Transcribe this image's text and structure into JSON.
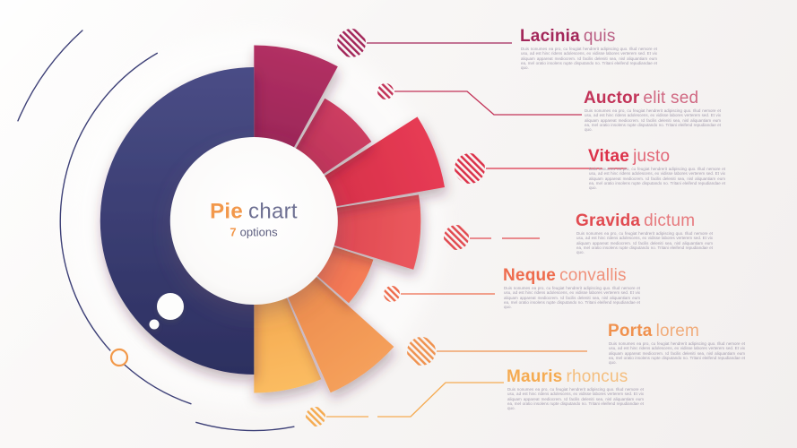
{
  "center": {
    "title_accent": "Pie",
    "title_rest": "chart",
    "subtitle_accent": "7",
    "subtitle_rest": "options"
  },
  "body_text": "Duis nonumes ea pro, cu feugiat hendrerit adipiscing quo. Illud nemore et usu, ad est hinc ridens adolescens, ex vidisse labores verterem sed. Et vix aliquam appareat mediocrem. Id facilis deleniti sea, nisl aliquantiam eum ea, mel oratio insolens rupte disputando no. Tritani eleifend repudiandae et quo.",
  "labels": [
    {
      "id": "lacinia",
      "word1": "Lacinia",
      "word2": "quis",
      "color": "#A3275A"
    },
    {
      "id": "auctor",
      "word1": "Auctor",
      "word2": "elit sed",
      "color": "#C23358"
    },
    {
      "id": "vitae",
      "word1": "Vitae",
      "word2": "justo",
      "color": "#DC3149"
    },
    {
      "id": "gravida",
      "word1": "Gravida",
      "word2": "dictum",
      "color": "#E14B51"
    },
    {
      "id": "neque",
      "word1": "Neque",
      "word2": "convallis",
      "color": "#EE6C4E"
    },
    {
      "id": "porta",
      "word1": "Porta",
      "word2": "lorem",
      "color": "#F0924F"
    },
    {
      "id": "mauris",
      "word1": "Mauris",
      "word2": "rhoncus",
      "color": "#F5AB52"
    }
  ],
  "chart_data": {
    "type": "pie",
    "title": "Pie chart",
    "subtitle": "7 options",
    "options_count": 7,
    "legend_position": "right",
    "segments": [
      {
        "id": "lacinia",
        "label": "Lacinia quis",
        "value_pct": 7.9,
        "start_angle": 0,
        "end_angle": 28.5,
        "outer_radius": 196,
        "color_light": "#B23063",
        "color_dark": "#8A1F4F"
      },
      {
        "id": "auctor",
        "label": "Auctor elit sed",
        "value_pct": 7.2,
        "start_angle": 30,
        "end_angle": 56,
        "outer_radius": 158,
        "color_light": "#CD3D62",
        "color_dark": "#AC294D"
      },
      {
        "id": "vitae",
        "label": "Vitae justo",
        "value_pct": 6.3,
        "start_angle": 57.5,
        "end_angle": 80,
        "outer_radius": 216,
        "color_light": "#E73B54",
        "color_dark": "#CB2A43"
      },
      {
        "id": "gravida",
        "label": "Gravida dictum",
        "value_pct": 7.2,
        "start_angle": 81,
        "end_angle": 107,
        "outer_radius": 186,
        "color_light": "#EB585D",
        "color_dark": "#D33A47"
      },
      {
        "id": "neque",
        "label": "Neque convallis",
        "value_pct": 6.4,
        "start_angle": 108,
        "end_angle": 131,
        "outer_radius": 140,
        "color_light": "#F57D56",
        "color_dark": "#E15A46"
      },
      {
        "id": "porta",
        "label": "Porta lorem",
        "value_pct": 6.7,
        "start_angle": 132,
        "end_angle": 156,
        "outer_radius": 210,
        "color_light": "#F5A05B",
        "color_dark": "#E77D43"
      },
      {
        "id": "mauris",
        "label": "Mauris rhoncus",
        "value_pct": 6.4,
        "start_angle": 157,
        "end_angle": 180,
        "outer_radius": 192,
        "color_light": "#FBBC61",
        "color_dark": "#EE9944"
      },
      {
        "id": "base",
        "label": "",
        "value_pct": 50,
        "start_angle": 180,
        "end_angle": 360,
        "outer_radius": 171.5,
        "color_light": "#4A4D86",
        "color_dark": "#2C2F60"
      }
    ]
  },
  "decor": {
    "arc_color": "#3D4077",
    "ring_color": "#F2994A",
    "accent_orange": "#F2984B"
  }
}
